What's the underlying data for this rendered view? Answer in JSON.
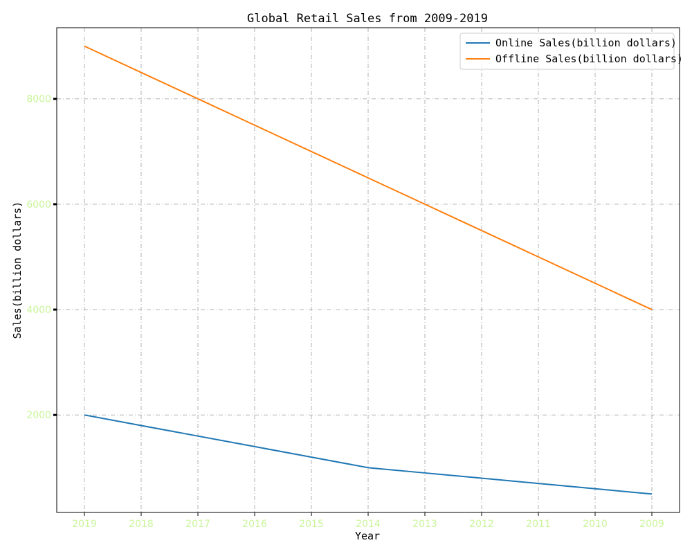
{
  "chart_data": {
    "type": "line",
    "title": "Global Retail Sales from 2009-2019",
    "xlabel": "Year",
    "ylabel": "Sales(billion dollars)",
    "categories": [
      "2019",
      "2018",
      "2017",
      "2016",
      "2015",
      "2014",
      "2013",
      "2012",
      "2011",
      "2010",
      "2009"
    ],
    "series": [
      {
        "name": "Online Sales(billion dollars)",
        "color": "#1f77b4",
        "values": [
          2000,
          1800,
          1600,
          1400,
          1200,
          1000,
          900,
          800,
          700,
          600,
          500
        ]
      },
      {
        "name": "Offline Sales(billion dollars)",
        "color": "#ff7f0e",
        "values": [
          9000,
          8500,
          8000,
          7500,
          7000,
          6500,
          6000,
          5500,
          5000,
          4500,
          4000
        ]
      }
    ],
    "yticks": [
      2000,
      4000,
      6000,
      8000
    ],
    "ylim": [
      150,
      9350
    ],
    "grid": true,
    "legend": "top-right",
    "tick_label_color": "#c9f59a"
  }
}
